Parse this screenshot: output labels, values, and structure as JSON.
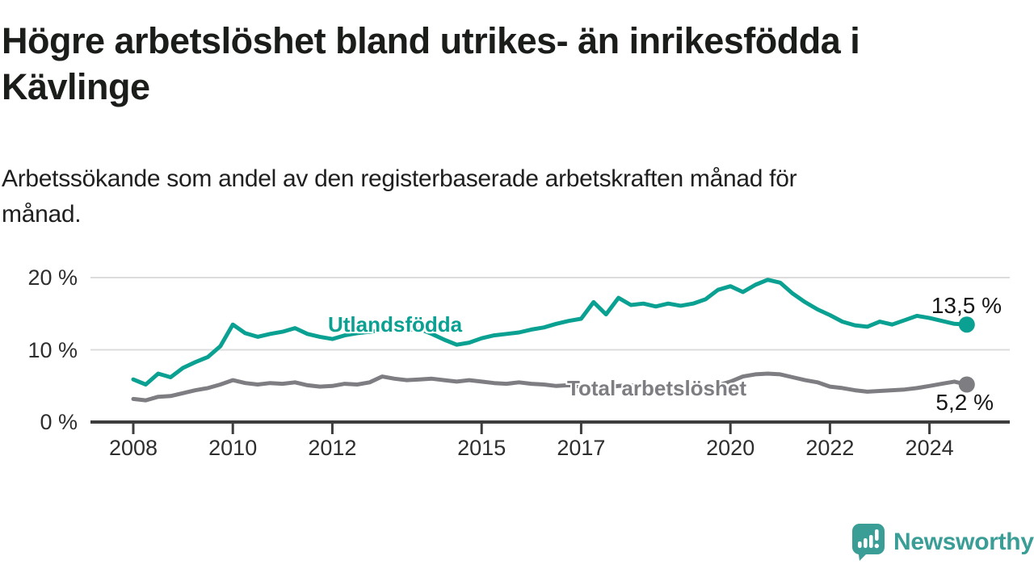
{
  "title": {
    "line1": "Högre arbetslöshet bland utrikes- än inrikesfödda i",
    "line2": "Kävlinge"
  },
  "subtitle": {
    "line1": "Arbetssökande som andel av den registerbaserade arbetskraften månad för",
    "line2": "månad."
  },
  "logo": {
    "text": "Newsworthy",
    "color": "#3a9e97"
  },
  "colors": {
    "axis": "#3d3d3d",
    "grid": "#dcdcdc",
    "text_dark": "#1b1d1a"
  },
  "chart_data": {
    "type": "line",
    "title": "Högre arbetslöshet bland utrikes- än inrikesfödda i Kävlinge",
    "subtitle": "Arbetssökande som andel av den registerbaserade arbetskraften månad för månad.",
    "xlabel": "",
    "ylabel": "",
    "grid": true,
    "legend_position": "inline-labels",
    "ylim": [
      0,
      22
    ],
    "x": {
      "start": 2008.0,
      "step": 0.25,
      "end": 2024.75
    },
    "x_ticks": [
      {
        "value": 2008,
        "label": "2008"
      },
      {
        "value": 2010,
        "label": "2010"
      },
      {
        "value": 2012,
        "label": "2012"
      },
      {
        "value": 2015,
        "label": "2015"
      },
      {
        "value": 2017,
        "label": "2017"
      },
      {
        "value": 2020,
        "label": "2020"
      },
      {
        "value": 2022,
        "label": "2022"
      },
      {
        "value": 2024,
        "label": "2024"
      }
    ],
    "y_ticks": [
      {
        "value": 0,
        "label": "0 %"
      },
      {
        "value": 10,
        "label": "10 %"
      },
      {
        "value": 20,
        "label": "20 %"
      }
    ],
    "series": [
      {
        "name": "Utlandsfödda",
        "color": "#0aa092",
        "end_value": 13.5,
        "end_label": "13,5 %",
        "values": [
          5.9,
          5.2,
          6.7,
          6.2,
          7.5,
          8.3,
          9.0,
          10.5,
          13.5,
          12.3,
          11.8,
          12.2,
          12.5,
          13.0,
          12.2,
          11.8,
          11.5,
          12.0,
          12.3,
          12.5,
          12.7,
          13.1,
          12.7,
          12.9,
          12.2,
          11.4,
          10.7,
          11.0,
          11.6,
          12.0,
          12.2,
          12.4,
          12.8,
          13.1,
          13.6,
          14.0,
          14.3,
          16.6,
          14.9,
          17.2,
          16.2,
          16.4,
          16.0,
          16.4,
          16.1,
          16.4,
          17.0,
          18.3,
          18.8,
          18.0,
          19.0,
          19.7,
          19.3,
          17.8,
          16.6,
          15.6,
          14.8,
          13.9,
          13.4,
          13.2,
          13.9,
          13.5,
          14.1,
          14.7,
          14.4,
          14.0,
          13.6,
          13.5
        ]
      },
      {
        "name": "Total arbetslöshet",
        "color": "#7d7d82",
        "end_value": 5.2,
        "end_label": "5,2 %",
        "values": [
          3.2,
          3.0,
          3.5,
          3.6,
          4.0,
          4.4,
          4.7,
          5.2,
          5.8,
          5.4,
          5.2,
          5.4,
          5.3,
          5.5,
          5.1,
          4.9,
          5.0,
          5.3,
          5.2,
          5.5,
          6.3,
          6.0,
          5.8,
          5.9,
          6.0,
          5.8,
          5.6,
          5.8,
          5.6,
          5.4,
          5.3,
          5.5,
          5.3,
          5.2,
          5.0,
          5.1,
          4.9,
          5.1,
          4.8,
          5.0,
          5.1,
          4.9,
          4.8,
          5.0,
          4.9,
          5.0,
          4.8,
          5.1,
          5.6,
          6.3,
          6.6,
          6.7,
          6.6,
          6.2,
          5.8,
          5.5,
          4.9,
          4.7,
          4.4,
          4.2,
          4.3,
          4.4,
          4.5,
          4.7,
          5.0,
          5.3,
          5.6,
          5.2
        ]
      }
    ]
  }
}
